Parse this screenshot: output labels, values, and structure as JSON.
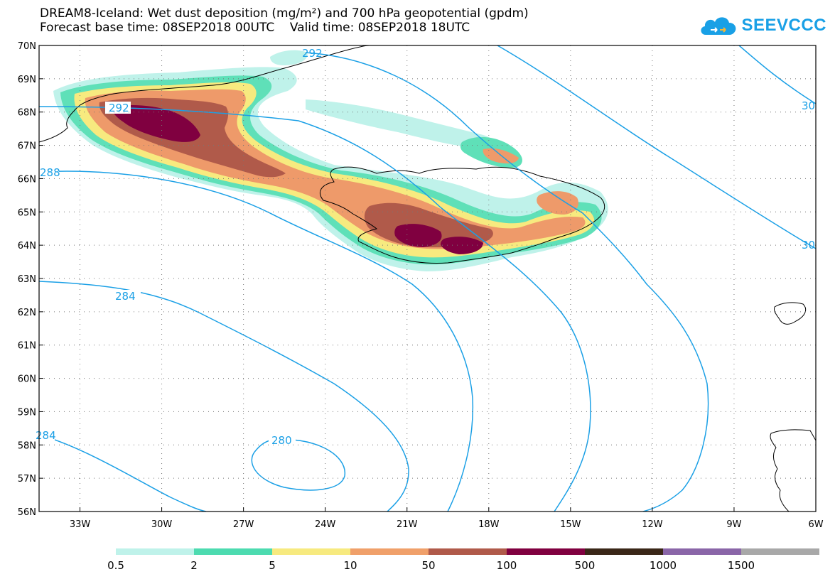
{
  "header": {
    "title_line1": "DREAM8-Iceland: Wet dust deposition (mg/m²) and 700 hPa geopotential (gpdm)",
    "title_line2": "Forecast base time: 08SEP2018 00UTC    Valid time: 08SEP2018 18UTC"
  },
  "logo": {
    "text": "SEEVCCC",
    "icon": "cloud-icon",
    "color": "#19a0e6"
  },
  "axes": {
    "lat_labels": [
      "70N",
      "69N",
      "68N",
      "67N",
      "66N",
      "65N",
      "64N",
      "63N",
      "62N",
      "61N",
      "60N",
      "59N",
      "58N",
      "57N",
      "56N"
    ],
    "lon_labels": [
      "33W",
      "30W",
      "27W",
      "24W",
      "21W",
      "18W",
      "15W",
      "12W",
      "9W",
      "6W"
    ],
    "lat_range": [
      56,
      70
    ],
    "lon_range": [
      -34.5,
      -6
    ],
    "grid": "dotted"
  },
  "contours": {
    "labels": [
      "292",
      "292",
      "288",
      "284",
      "284",
      "280",
      "30",
      "30"
    ],
    "color": "#1ba0e6"
  },
  "colorbar": {
    "labels": [
      "0.5",
      "2",
      "5",
      "10",
      "50",
      "100",
      "500",
      "1000",
      "1500"
    ],
    "colors": [
      "#bff2ea",
      "#4ddbb0",
      "#f7ea7f",
      "#f0a06a",
      "#b05a4a",
      "#800040",
      "#3a2718",
      "#8a66a8",
      "#a8a8a8"
    ]
  },
  "deposition_colors": {
    "c1": "#bff2ea",
    "c2": "#5fe0b8",
    "c3": "#f7ea7f",
    "c4": "#ee9a6a",
    "c5": "#b05a4a",
    "c6": "#800040"
  }
}
